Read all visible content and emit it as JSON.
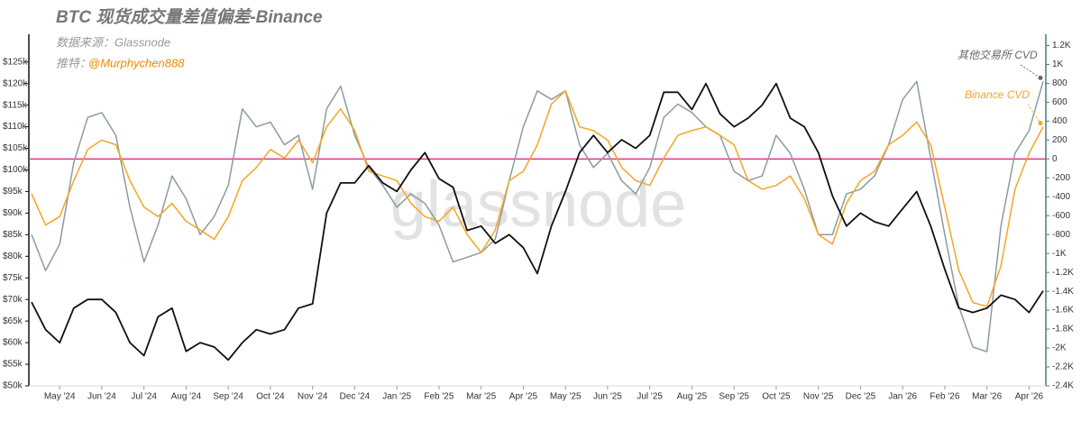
{
  "chart_data": {
    "type": "line",
    "title": "BTC 现货成交量差值偏差-Binance",
    "source": "数据来源：Glassnode",
    "author_prefix": "推特：",
    "author": "@Murphychen888",
    "watermark": "glassnode",
    "categories": [
      null,
      null,
      "May '24",
      null,
      null,
      "Jun '24",
      null,
      null,
      "Jul '24",
      null,
      null,
      "Aug '24",
      null,
      null,
      "Sep '24",
      null,
      null,
      "Oct '24",
      null,
      null,
      "Nov '24",
      null,
      null,
      "Dec '24",
      null,
      null,
      "Jan '25",
      null,
      null,
      "Feb '25",
      null,
      null,
      "Mar '25",
      null,
      null,
      "Apr '25",
      null,
      null,
      "May '25",
      null,
      null,
      "Jun '25",
      null,
      null,
      "Jul '25",
      null,
      null,
      "Aug '25",
      null,
      null,
      "Sep '25",
      null,
      null,
      "Oct '25",
      null,
      null,
      "Nov '25",
      null,
      null,
      "Dec '25",
      null,
      null,
      "Jan '26",
      null,
      null,
      "Feb '26",
      null,
      null,
      "Mar '26",
      null,
      null,
      "Apr '26",
      null
    ],
    "ylim": [
      50000,
      131000
    ],
    "yticks": [
      {
        "value": 50000,
        "label": "$50k"
      },
      {
        "value": 55000,
        "label": "$55k"
      },
      {
        "value": 60000,
        "label": "$60k"
      },
      {
        "value": 65000,
        "label": "$65k"
      },
      {
        "value": 70000,
        "label": "$70k"
      },
      {
        "value": 75000,
        "label": "$75k"
      },
      {
        "value": 80000,
        "label": "$80k"
      },
      {
        "value": 85000,
        "label": "$85k"
      },
      {
        "value": 90000,
        "label": "$90k"
      },
      {
        "value": 95000,
        "label": "$95k"
      },
      {
        "value": 100000,
        "label": "$100k"
      },
      {
        "value": 105000,
        "label": "$105k"
      },
      {
        "value": 110000,
        "label": "$110k"
      },
      {
        "value": 115000,
        "label": "$115k"
      },
      {
        "value": 120000,
        "label": "$120k"
      },
      {
        "value": 125000,
        "label": "$125k"
      }
    ],
    "y2lim": [
      -2400,
      1300
    ],
    "y2ticks": [
      {
        "value": -2400,
        "label": "-2.4K"
      },
      {
        "value": -2200,
        "label": "-2.2K"
      },
      {
        "value": -2000,
        "label": "-2K"
      },
      {
        "value": -1800,
        "label": "-1.8K"
      },
      {
        "value": -1600,
        "label": "-1.6K"
      },
      {
        "value": -1400,
        "label": "-1.4K"
      },
      {
        "value": -1200,
        "label": "-1.2K"
      },
      {
        "value": -1000,
        "label": "-1K"
      },
      -800,
      -600,
      -400,
      -200,
      0,
      200,
      400,
      600,
      800,
      {
        "value": 1000,
        "label": "1K"
      },
      {
        "value": 1200,
        "label": "1.2K"
      }
    ],
    "reference_line": {
      "value": 0,
      "axis": "y2",
      "color": "#e0338e"
    },
    "series": [
      {
        "color": "#111111",
        "axis": "y",
        "values": [
          69400,
          63000,
          60000,
          68000,
          70000,
          70000,
          67000,
          60000,
          57000,
          66000,
          68000,
          58000,
          60000,
          59000,
          56000,
          60000,
          63000,
          62000,
          63000,
          68000,
          69000,
          90000,
          97000,
          97000,
          101000,
          97000,
          95000,
          100000,
          104000,
          98000,
          96000,
          86000,
          87000,
          83000,
          85000,
          82000,
          76000,
          87000,
          95000,
          104000,
          108000,
          104000,
          107000,
          105000,
          108000,
          118000,
          118000,
          114000,
          120000,
          113000,
          110000,
          112000,
          115000,
          120000,
          112000,
          110000,
          104000,
          94000,
          87000,
          90000,
          88000,
          87000,
          91000,
          95000,
          87000,
          77000,
          68000,
          67000,
          68000,
          71000,
          70000,
          67000,
          72000
        ]
      },
      {
        "name": "其他交易所 CVD",
        "color": "#8a9ca0",
        "axis": "y2",
        "values": [
          -800,
          -1180,
          -900,
          -40,
          440,
          490,
          250,
          -510,
          -1090,
          -700,
          -180,
          -420,
          -800,
          -610,
          -280,
          530,
          340,
          390,
          150,
          250,
          -320,
          530,
          770,
          250,
          -90,
          -280,
          -510,
          -370,
          -470,
          -700,
          -1090,
          -1040,
          -990,
          -850,
          -230,
          340,
          720,
          630,
          720,
          150,
          -90,
          60,
          -230,
          -370,
          -90,
          440,
          580,
          490,
          340,
          250,
          -130,
          -230,
          -180,
          250,
          60,
          -320,
          -800,
          -800,
          -370,
          -320,
          -180,
          150,
          630,
          820,
          10,
          -800,
          -1560,
          -1990,
          -2040,
          -700,
          60,
          300,
          820
        ]
      },
      {
        "name": "Binance CVD",
        "color": "#f5a623",
        "axis": "y2",
        "values": [
          -370,
          -700,
          -610,
          -230,
          100,
          200,
          150,
          -230,
          -510,
          -610,
          -470,
          -660,
          -750,
          -850,
          -610,
          -230,
          -90,
          100,
          10,
          200,
          -40,
          340,
          530,
          300,
          -130,
          -180,
          -230,
          -470,
          -610,
          -660,
          -510,
          -800,
          -990,
          -750,
          -230,
          -130,
          150,
          580,
          720,
          340,
          300,
          200,
          -90,
          -230,
          -280,
          10,
          250,
          300,
          340,
          250,
          150,
          -230,
          -320,
          -280,
          -180,
          -420,
          -800,
          -900,
          -470,
          -230,
          -130,
          150,
          250,
          390,
          150,
          -510,
          -1180,
          -1520,
          -1560,
          -1130,
          -320,
          60,
          340
        ]
      }
    ]
  }
}
